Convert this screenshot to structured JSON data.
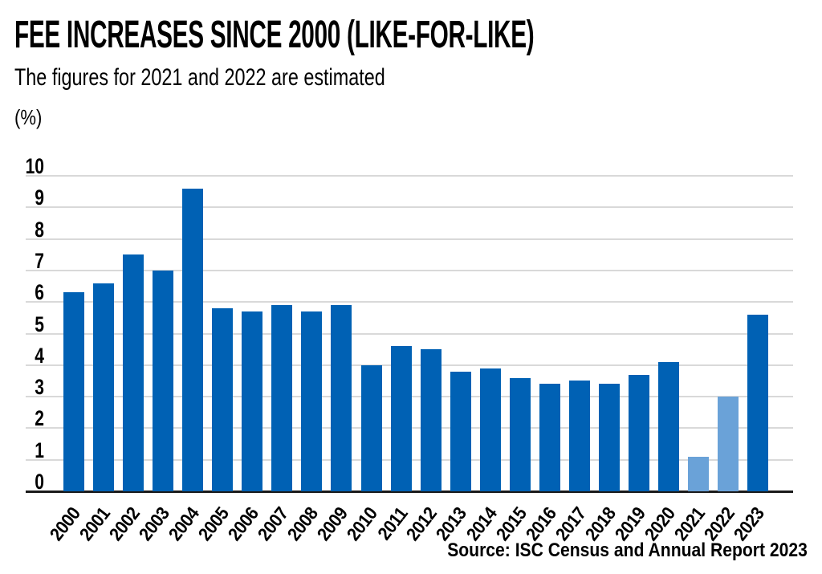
{
  "header": {
    "title": "FEE INCREASES SINCE 2000 (LIKE-FOR-LIKE)",
    "subtitle": "The figures for 2021 and 2022 are estimated",
    "axis_unit_label": "(%)"
  },
  "footer": {
    "source": "Source: ISC Census and Annual Report 2023"
  },
  "chart_data": {
    "type": "bar",
    "title": "FEE INCREASES SINCE 2000 (LIKE-FOR-LIKE)",
    "subtitle": "The figures for 2021 and 2022 are estimated",
    "ylabel": "(%)",
    "xlabel": "",
    "categories": [
      "2000",
      "2001",
      "2002",
      "2003",
      "2004",
      "2005",
      "2006",
      "2007",
      "2008",
      "2009",
      "2010",
      "2011",
      "2012",
      "2013",
      "2014",
      "2015",
      "2016",
      "2017",
      "2018",
      "2019",
      "2020",
      "2021",
      "2022",
      "2023"
    ],
    "values": [
      6.3,
      6.6,
      7.5,
      7.0,
      9.6,
      5.8,
      5.7,
      5.9,
      5.7,
      5.9,
      4.0,
      4.6,
      4.5,
      3.8,
      3.9,
      3.6,
      3.4,
      3.5,
      3.4,
      3.7,
      4.1,
      1.1,
      3.0,
      5.6
    ],
    "estimated_categories": [
      "2021",
      "2022"
    ],
    "ylim": [
      0,
      10
    ],
    "yticks": [
      0,
      1,
      2,
      3,
      4,
      5,
      6,
      7,
      8,
      9,
      10
    ],
    "grid": true,
    "legend": false,
    "colors": {
      "bar": "#0061b4",
      "bar_estimated": "#6aa2d8",
      "gridline": "#d9d9d9",
      "zero_axis": "#1a1a1a",
      "text": "#000000"
    },
    "source": "Source: ISC Census and Annual Report 2023"
  }
}
